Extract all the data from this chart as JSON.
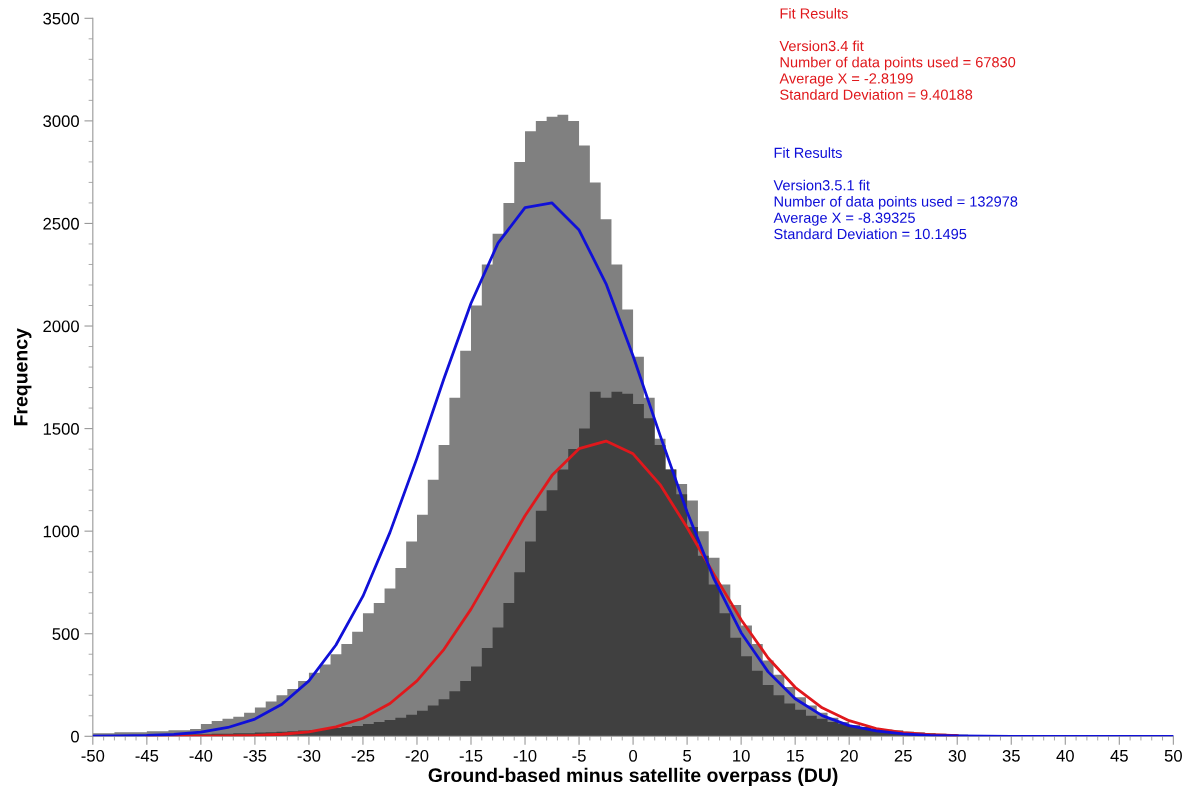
{
  "chart_data": {
    "type": "histogram",
    "xlabel": "Ground-based minus satellite overpass (DU)",
    "ylabel": "Frequency",
    "bins": [
      -50,
      -49,
      -48,
      -47,
      -46,
      -45,
      -44,
      -43,
      -42,
      -41,
      -40,
      -39,
      -38,
      -37,
      -36,
      -35,
      -34,
      -33,
      -32,
      -31,
      -30,
      -29,
      -28,
      -27,
      -26,
      -25,
      -24,
      -23,
      -22,
      -21,
      -20,
      -19,
      -18,
      -17,
      -16,
      -15,
      -14,
      -13,
      -12,
      -11,
      -10,
      -9,
      -8,
      -7,
      -6,
      -5,
      -4,
      -3,
      -2,
      -1,
      0,
      1,
      2,
      3,
      4,
      5,
      6,
      7,
      8,
      9,
      10,
      11,
      12,
      13,
      14,
      15,
      16,
      17,
      18,
      19,
      20,
      21,
      22,
      23,
      24,
      25,
      26,
      27,
      28,
      29,
      30,
      31,
      32,
      33,
      34,
      35
    ],
    "series": [
      {
        "color": "#808080",
        "values": [
          15,
          15,
          20,
          20,
          20,
          25,
          25,
          30,
          30,
          35,
          60,
          75,
          85,
          95,
          115,
          140,
          170,
          200,
          230,
          270,
          310,
          350,
          400,
          450,
          510,
          600,
          650,
          720,
          820,
          950,
          1080,
          1250,
          1420,
          1650,
          1880,
          2100,
          2300,
          2450,
          2600,
          2800,
          2950,
          3000,
          3020,
          3030,
          3000,
          2880,
          2700,
          2520,
          2300,
          2080,
          1850,
          1650,
          1450,
          1300,
          1230,
          1150,
          1000,
          870,
          740,
          640,
          540,
          450,
          370,
          300,
          240,
          190,
          150,
          115,
          90,
          70,
          55,
          42,
          32,
          25,
          20,
          18,
          15,
          12,
          10,
          8,
          6,
          5,
          4,
          3,
          3
        ]
      },
      {
        "color": "#404040",
        "values": [
          5,
          5,
          5,
          5,
          5,
          8,
          8,
          8,
          10,
          10,
          10,
          12,
          12,
          15,
          15,
          18,
          20,
          22,
          25,
          28,
          30,
          35,
          40,
          45,
          50,
          60,
          70,
          80,
          90,
          105,
          125,
          150,
          180,
          220,
          270,
          340,
          430,
          530,
          650,
          800,
          950,
          1100,
          1200,
          1300,
          1400,
          1500,
          1680,
          1650,
          1680,
          1670,
          1620,
          1550,
          1420,
          1300,
          1180,
          1020,
          880,
          740,
          600,
          480,
          390,
          320,
          250,
          200,
          160,
          130,
          100,
          85,
          70,
          60,
          50,
          45,
          38,
          32,
          28,
          22,
          18,
          15,
          12,
          10,
          8,
          6,
          5,
          4,
          3
        ]
      },
      {
        "type": "line",
        "color": "#e0181c",
        "x": [
          -45,
          -42.5,
          -40,
          -37.5,
          -35,
          -32.5,
          -30,
          -27.5,
          -25,
          -22.5,
          -20,
          -17.5,
          -15,
          -12.5,
          -10,
          -7.5,
          -5,
          -2.5,
          0,
          2.5,
          5,
          7.5,
          10,
          12.5,
          15,
          17.5,
          20,
          22.5,
          25,
          27.5,
          30
        ],
        "values": [
          0,
          0,
          1,
          2,
          4,
          10,
          22,
          46,
          88,
          160,
          270,
          424,
          620,
          848,
          1075,
          1272,
          1402,
          1439,
          1377,
          1227,
          1018,
          788,
          568,
          382,
          239,
          139,
          76,
          38,
          18,
          8,
          3
        ]
      },
      {
        "type": "line",
        "color": "#1010d8",
        "x": [
          -50,
          -47.5,
          -45,
          -42.5,
          -40,
          -37.5,
          -35,
          -32.5,
          -30,
          -27.5,
          -25,
          -22.5,
          -20,
          -17.5,
          -15,
          -12.5,
          -10,
          -7.5,
          -5,
          -2.5,
          0,
          2.5,
          5,
          7.5,
          10,
          12.5,
          15,
          17.5,
          20,
          22.5,
          25,
          27.5,
          30,
          32.5,
          35,
          37.5,
          40,
          42.5,
          45,
          47.5,
          50
        ],
        "values": [
          1,
          2,
          4,
          9,
          20,
          43,
          84,
          156,
          270,
          445,
          683,
          994,
          1356,
          1744,
          2111,
          2404,
          2577,
          2600,
          2468,
          2206,
          1854,
          1467,
          1093,
          766,
          505,
          314,
          183,
          101,
          52,
          26,
          12,
          5,
          2,
          1,
          0,
          0,
          0,
          0,
          0,
          0,
          0
        ]
      }
    ],
    "xlim": [
      -50,
      50
    ],
    "xticks": [
      -50,
      -45,
      -40,
      -35,
      -30,
      -25,
      -20,
      -15,
      -10,
      -5,
      0,
      5,
      10,
      15,
      20,
      25,
      30,
      35,
      40,
      45,
      50
    ],
    "ylim": [
      0,
      3500
    ],
    "yticks": [
      0,
      500,
      1000,
      1500,
      2000,
      2500,
      3000,
      3500
    ],
    "grid": false,
    "legend": false,
    "line_style": "solid",
    "marker": "none",
    "annotations": [
      "Fit Results\n\nVersion3.4 fit\nNumber of data points used = 67830\nAverage X = -2.8199\nStandard Deviation = 9.40188",
      "Fit Results\n\nVersion3.5.1 fit\nNumber of data points used = 132978\nAverage X = -8.39325\nStandard Deviation = 10.1495"
    ]
  }
}
